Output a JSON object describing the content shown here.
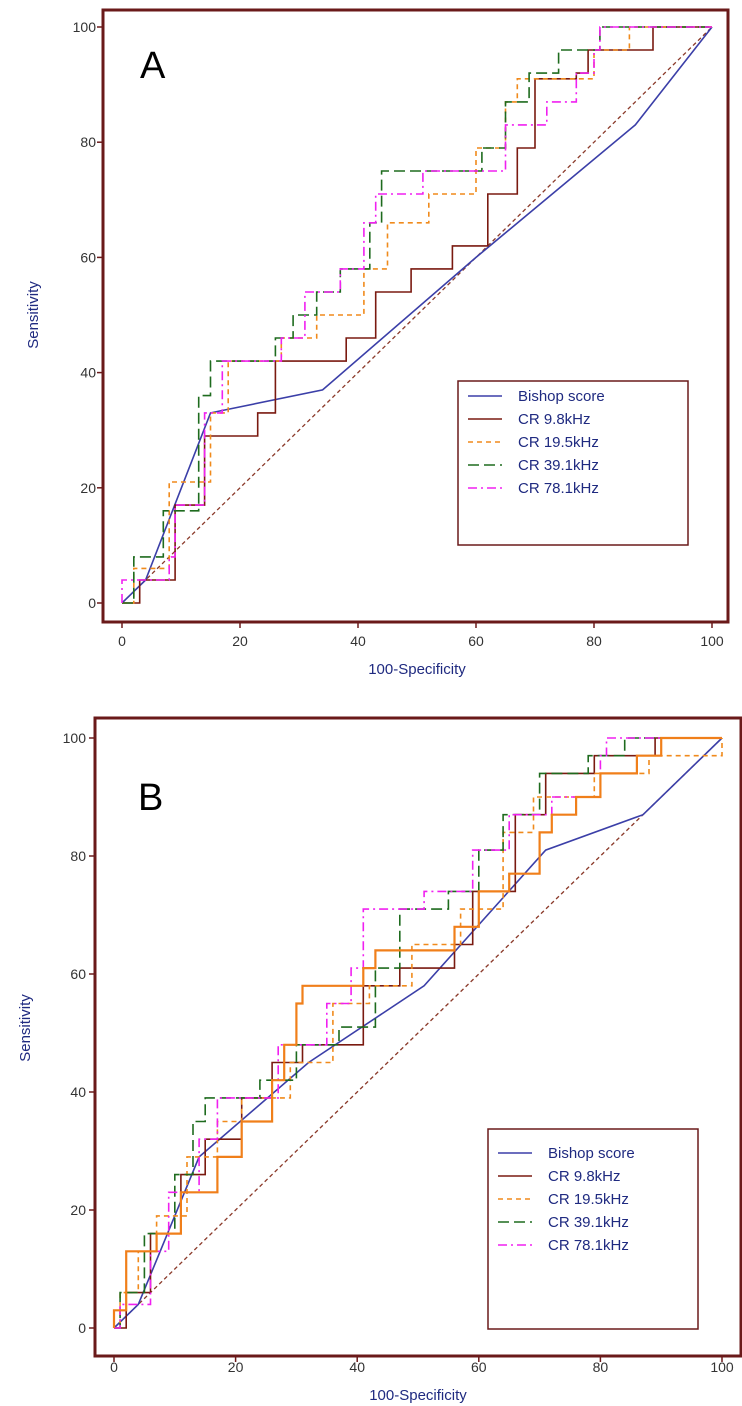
{
  "chart_data": [
    {
      "type": "line",
      "panel_label": "A",
      "xlabel": "100-Specificity",
      "ylabel": "Sensitivity",
      "xlim": [
        0,
        100
      ],
      "ylim": [
        0,
        100
      ],
      "x_ticks": [
        "0",
        "20",
        "40",
        "60",
        "80",
        "100"
      ],
      "y_ticks": [
        "0",
        "20",
        "40",
        "60",
        "80",
        "100"
      ],
      "legend_position": "lower-right",
      "reference_line": {
        "from": [
          0,
          0
        ],
        "to": [
          100,
          100
        ],
        "color": "#8b3a2a"
      },
      "series": [
        {
          "name": "Bishop score",
          "color": "#3b3fa8",
          "style": "solid",
          "step": false,
          "points": [
            [
              0,
              0
            ],
            [
              4,
              4
            ],
            [
              15,
              33
            ],
            [
              34,
              37
            ],
            [
              60,
              60
            ],
            [
              87,
              83
            ],
            [
              100,
              100
            ]
          ]
        },
        {
          "name": "CR 9.8kHz",
          "color": "#7a1a10",
          "style": "solid",
          "step": true,
          "points": [
            [
              0,
              0
            ],
            [
              3,
              4
            ],
            [
              9,
              17
            ],
            [
              14,
              29
            ],
            [
              23,
              33
            ],
            [
              26,
              42
            ],
            [
              38,
              46
            ],
            [
              43,
              54
            ],
            [
              49,
              58
            ],
            [
              56,
              62
            ],
            [
              62,
              71
            ],
            [
              67,
              79
            ],
            [
              70,
              91
            ],
            [
              77,
              92
            ],
            [
              79,
              96
            ],
            [
              90,
              100
            ],
            [
              100,
              100
            ]
          ]
        },
        {
          "name": "CR 19.5kHz",
          "color": "#f08a1c",
          "style": "dashed",
          "step": true,
          "points": [
            [
              0,
              0
            ],
            [
              2,
              6
            ],
            [
              8,
              21
            ],
            [
              15,
              33
            ],
            [
              18,
              42
            ],
            [
              27,
              46
            ],
            [
              33,
              50
            ],
            [
              41,
              58
            ],
            [
              45,
              66
            ],
            [
              52,
              71
            ],
            [
              60,
              79
            ],
            [
              65,
              87
            ],
            [
              67,
              91
            ],
            [
              80,
              96
            ],
            [
              86,
              100
            ],
            [
              100,
              100
            ]
          ]
        },
        {
          "name": "CR 39.1kHz",
          "color": "#1e6b1e",
          "style": "dash-long",
          "step": true,
          "points": [
            [
              0,
              0
            ],
            [
              2,
              8
            ],
            [
              7,
              16
            ],
            [
              13,
              36
            ],
            [
              15,
              42
            ],
            [
              26,
              46
            ],
            [
              29,
              50
            ],
            [
              33,
              54
            ],
            [
              37,
              58
            ],
            [
              42,
              66
            ],
            [
              44,
              75
            ],
            [
              61,
              79
            ],
            [
              65,
              87
            ],
            [
              69,
              92
            ],
            [
              74,
              96
            ],
            [
              81,
              100
            ],
            [
              100,
              100
            ]
          ]
        },
        {
          "name": "CR 78.1kHz",
          "color": "#f020f0",
          "style": "dash-dot",
          "step": true,
          "points": [
            [
              0,
              0
            ],
            [
              0,
              4
            ],
            [
              8,
              8
            ],
            [
              9,
              17
            ],
            [
              14,
              33
            ],
            [
              17,
              42
            ],
            [
              27,
              46
            ],
            [
              31,
              54
            ],
            [
              37,
              58
            ],
            [
              41,
              66
            ],
            [
              43,
              71
            ],
            [
              51,
              75
            ],
            [
              65,
              83
            ],
            [
              72,
              87
            ],
            [
              77,
              92
            ],
            [
              80,
              96
            ],
            [
              81,
              100
            ],
            [
              100,
              100
            ]
          ]
        }
      ]
    },
    {
      "type": "line",
      "panel_label": "B",
      "xlabel": "100-Specificity",
      "ylabel": "Sensitivity",
      "xlim": [
        0,
        100
      ],
      "ylim": [
        0,
        100
      ],
      "x_ticks": [
        "0",
        "20",
        "40",
        "60",
        "80",
        "100"
      ],
      "y_ticks": [
        "0",
        "20",
        "40",
        "60",
        "80",
        "100"
      ],
      "legend_position": "lower-right",
      "reference_line": {
        "from": [
          0,
          0
        ],
        "to": [
          100,
          100
        ],
        "color": "#8b3a2a"
      },
      "series": [
        {
          "name": "Bishop score",
          "color": "#3b3fa8",
          "style": "solid",
          "step": false,
          "points": [
            [
              0,
              0
            ],
            [
              4,
              4
            ],
            [
              14,
              29
            ],
            [
              32,
              45
            ],
            [
              51,
              58
            ],
            [
              71,
              81
            ],
            [
              87,
              87
            ],
            [
              100,
              100
            ]
          ]
        },
        {
          "name": "CR 9.8kHz",
          "color": "#7a1a10",
          "style": "solid",
          "step": true,
          "points": [
            [
              0,
              0
            ],
            [
              2,
              6
            ],
            [
              6,
              16
            ],
            [
              11,
              26
            ],
            [
              15,
              32
            ],
            [
              21,
              39
            ],
            [
              26,
              45
            ],
            [
              31,
              48
            ],
            [
              41,
              58
            ],
            [
              47,
              61
            ],
            [
              56,
              65
            ],
            [
              59,
              74
            ],
            [
              66,
              87
            ],
            [
              71,
              94
            ],
            [
              79,
              97
            ],
            [
              89,
              100
            ],
            [
              100,
              100
            ]
          ]
        },
        {
          "name": "CR 19.5kHz",
          "color": "#f08a1c",
          "style": "dashed",
          "step": true,
          "points": [
            [
              0,
              0
            ],
            [
              1,
              6
            ],
            [
              4,
              13
            ],
            [
              7,
              19
            ],
            [
              12,
              29
            ],
            [
              17,
              35
            ],
            [
              21,
              39
            ],
            [
              29,
              45
            ],
            [
              36,
              55
            ],
            [
              42,
              58
            ],
            [
              49,
              65
            ],
            [
              57,
              71
            ],
            [
              64,
              84
            ],
            [
              69,
              90
            ],
            [
              79,
              94
            ],
            [
              88,
              97
            ],
            [
              100,
              100
            ]
          ]
        },
        {
          "name": "CR 39.1kHz",
          "color": "#1e6b1e",
          "style": "dash-long",
          "step": true,
          "points": [
            [
              0,
              0
            ],
            [
              1,
              6
            ],
            [
              5,
              16
            ],
            [
              10,
              26
            ],
            [
              13,
              35
            ],
            [
              15,
              39
            ],
            [
              24,
              42
            ],
            [
              30,
              48
            ],
            [
              37,
              51
            ],
            [
              43,
              61
            ],
            [
              47,
              71
            ],
            [
              55,
              74
            ],
            [
              60,
              81
            ],
            [
              64,
              87
            ],
            [
              70,
              94
            ],
            [
              78,
              97
            ],
            [
              84,
              100
            ],
            [
              100,
              100
            ]
          ]
        },
        {
          "name": "CR 78.1kHz",
          "color": "#f020f0",
          "style": "dash-dot",
          "step": true,
          "points": [
            [
              0,
              0
            ],
            [
              1,
              4
            ],
            [
              6,
              13
            ],
            [
              9,
              23
            ],
            [
              14,
              32
            ],
            [
              17,
              39
            ],
            [
              27,
              48
            ],
            [
              35,
              55
            ],
            [
              39,
              61
            ],
            [
              41,
              71
            ],
            [
              51,
              74
            ],
            [
              59,
              81
            ],
            [
              65,
              87
            ],
            [
              72,
              90
            ],
            [
              80,
              97
            ],
            [
              81,
              100
            ],
            [
              100,
              100
            ]
          ]
        },
        {
          "color": "#f07f1a",
          "style": "solid-thick",
          "step": true,
          "points": [
            [
              0,
              0
            ],
            [
              0,
              3
            ],
            [
              2,
              13
            ],
            [
              7,
              16
            ],
            [
              11,
              23
            ],
            [
              17,
              29
            ],
            [
              21,
              35
            ],
            [
              26,
              42
            ],
            [
              28,
              48
            ],
            [
              30,
              55
            ],
            [
              31,
              58
            ],
            [
              41,
              61
            ],
            [
              43,
              64
            ],
            [
              56,
              68
            ],
            [
              60,
              74
            ],
            [
              65,
              77
            ],
            [
              70,
              84
            ],
            [
              72,
              87
            ],
            [
              76,
              90
            ],
            [
              80,
              94
            ],
            [
              86,
              97
            ],
            [
              90,
              100
            ],
            [
              100,
              100
            ]
          ]
        }
      ]
    }
  ]
}
